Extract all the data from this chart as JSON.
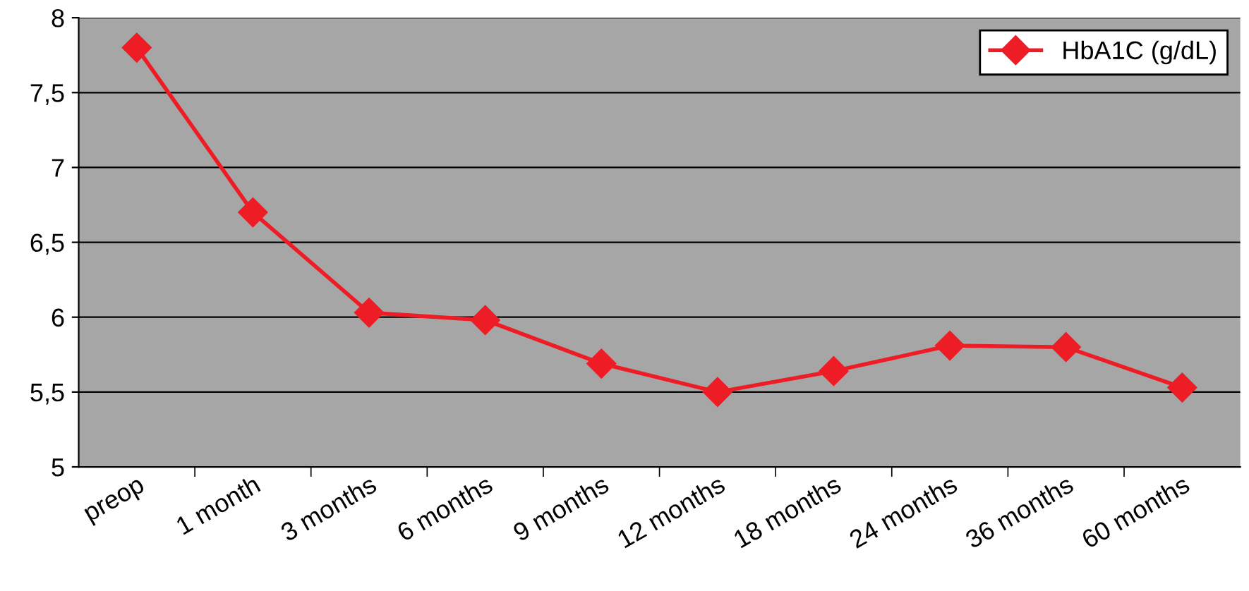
{
  "chart_data": {
    "type": "line",
    "categories": [
      "preop",
      "1 month",
      "3 months",
      "6 months",
      "9 months",
      "12 months",
      "18 months",
      "24 months",
      "36 months",
      "60 months"
    ],
    "series": [
      {
        "name": "HbA1C (g/dL)",
        "color": "#ee1c25",
        "values": [
          7.8,
          6.7,
          6.03,
          5.98,
          5.69,
          5.5,
          5.64,
          5.81,
          5.8,
          5.53
        ]
      }
    ],
    "ylim": [
      5,
      8
    ],
    "yticks": [
      5,
      {
        "value": 5.5,
        "label": "5,5"
      },
      6,
      {
        "value": 6.5,
        "label": "6,5"
      },
      7,
      {
        "value": 7.5,
        "label": "7,5"
      },
      8
    ],
    "grid": "y",
    "legend": "top right",
    "marker": "diamond",
    "line_style": "solid"
  }
}
